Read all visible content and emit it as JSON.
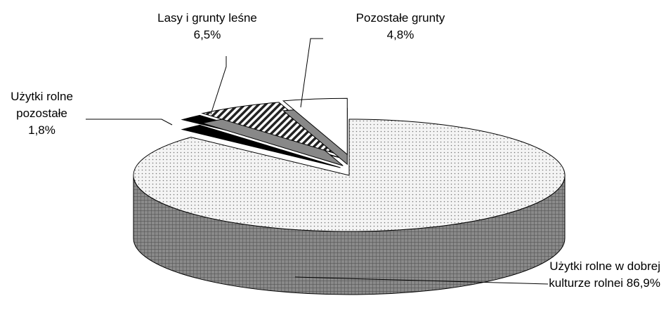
{
  "chart_data": {
    "type": "pie",
    "categories": [
      "Użytki rolne w dobrej kulturze rolnei",
      "Użytki rolne pozostałe",
      "Lasy i grunty leśne",
      "Pozostałe grunty"
    ],
    "values": [
      86.9,
      1.8,
      6.5,
      4.8
    ],
    "value_labels": [
      "86,9%",
      "1,8%",
      "6,5%",
      "4,8%"
    ],
    "colors": [
      "#f2f2f2",
      "#000000",
      "#9a9a9a",
      "#ffffff"
    ]
  }
}
